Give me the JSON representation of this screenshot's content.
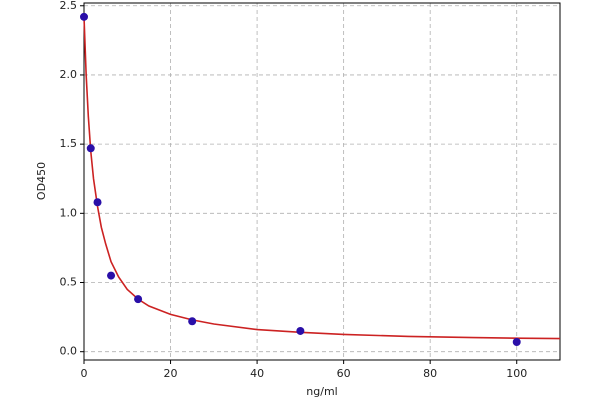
{
  "chart_data": {
    "type": "scatter",
    "x_label": "ng/ml",
    "y_label": "OD450",
    "xlim": [
      0,
      110
    ],
    "ylim": [
      -0.06,
      2.52
    ],
    "xticks": [
      0,
      20,
      40,
      60,
      80,
      100
    ],
    "yticks": [
      {
        "value": 0,
        "label": "0.0"
      },
      0.5,
      {
        "value": 1,
        "label": "1.0"
      },
      1.5,
      {
        "value": 2,
        "label": "2.0"
      },
      2.5
    ],
    "grid": true,
    "series": [
      {
        "mode": "line",
        "color": "#cc2222",
        "x": [
          0,
          0.5,
          1,
          1.56,
          2.2,
          3.125,
          4,
          5,
          6.25,
          8,
          10,
          12.5,
          15,
          20,
          25,
          30,
          40,
          50,
          60,
          75,
          90,
          100,
          110
        ],
        "values": [
          2.42,
          2.0,
          1.7,
          1.45,
          1.25,
          1.05,
          0.9,
          0.78,
          0.65,
          0.54,
          0.45,
          0.38,
          0.33,
          0.27,
          0.23,
          0.2,
          0.16,
          0.14,
          0.125,
          0.11,
          0.102,
          0.098,
          0.095
        ]
      },
      {
        "mode": "markers",
        "color": "#2a0fa8",
        "x": [
          0,
          1.56,
          3.125,
          6.25,
          12.5,
          25,
          50,
          100
        ],
        "values": [
          2.42,
          1.47,
          1.08,
          0.55,
          0.38,
          0.22,
          0.15,
          0.07
        ]
      }
    ]
  }
}
